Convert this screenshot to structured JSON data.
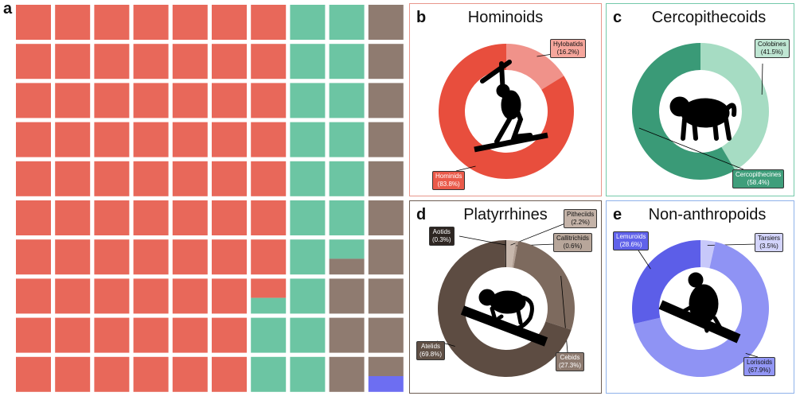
{
  "chart_data": [
    {
      "panel": "a",
      "type": "waffle",
      "rows": 10,
      "cols": 10,
      "colors": {
        "Hominoids": "#e8685a",
        "Cercopithecoids": "#6cc5a3",
        "Platyrrhines": "#8f7b70",
        "Non-anthropoids": "#6d6ef2"
      },
      "columns": [
        [
          "Hominoids",
          "Hominoids",
          "Hominoids",
          "Hominoids",
          "Hominoids",
          "Hominoids",
          "Hominoids",
          "Hominoids",
          "Hominoids",
          "Hominoids"
        ],
        [
          "Hominoids",
          "Hominoids",
          "Hominoids",
          "Hominoids",
          "Hominoids",
          "Hominoids",
          "Hominoids",
          "Hominoids",
          "Hominoids",
          "Hominoids"
        ],
        [
          "Hominoids",
          "Hominoids",
          "Hominoids",
          "Hominoids",
          "Hominoids",
          "Hominoids",
          "Hominoids",
          "Hominoids",
          "Hominoids",
          "Hominoids"
        ],
        [
          "Hominoids",
          "Hominoids",
          "Hominoids",
          "Hominoids",
          "Hominoids",
          "Hominoids",
          "Hominoids",
          "Hominoids",
          "Hominoids",
          "Hominoids"
        ],
        [
          "Hominoids",
          "Hominoids",
          "Hominoids",
          "Hominoids",
          "Hominoids",
          "Hominoids",
          "Hominoids",
          "Hominoids",
          "Hominoids",
          "Hominoids"
        ],
        [
          "Hominoids",
          "Hominoids",
          "Hominoids",
          "Hominoids",
          "Hominoids",
          "Hominoids",
          "Hominoids",
          "Hominoids",
          "Hominoids",
          "Hominoids"
        ],
        [
          "Hominoids",
          "Hominoids",
          "Hominoids",
          "Hominoids",
          "Hominoids",
          "Hominoids",
          "Hominoids",
          [
            "Hominoids",
            "Cercopithecoids"
          ],
          "Cercopithecoids",
          "Cercopithecoids"
        ],
        [
          "Cercopithecoids",
          "Cercopithecoids",
          "Cercopithecoids",
          "Cercopithecoids",
          "Cercopithecoids",
          "Cercopithecoids",
          "Cercopithecoids",
          "Cercopithecoids",
          "Cercopithecoids",
          "Cercopithecoids"
        ],
        [
          "Cercopithecoids",
          "Cercopithecoids",
          "Cercopithecoids",
          "Cercopithecoids",
          "Cercopithecoids",
          "Cercopithecoids",
          [
            "Cercopithecoids",
            "Platyrrhines"
          ],
          "Platyrrhines",
          "Platyrrhines",
          "Platyrrhines"
        ],
        [
          "Platyrrhines",
          "Platyrrhines",
          "Platyrrhines",
          "Platyrrhines",
          "Platyrrhines",
          "Platyrrhines",
          "Platyrrhines",
          "Platyrrhines",
          "Platyrrhines",
          [
            "Platyrrhines",
            "Non-anthropoids"
          ]
        ]
      ]
    },
    {
      "panel": "b",
      "type": "pie",
      "title": "Hominoids",
      "slices": [
        {
          "label": "Hylobatids",
          "value": 16.2,
          "display": "(16.2%)",
          "color": "#f0928a",
          "labelbg": "#f6a69c"
        },
        {
          "label": "Hominids",
          "value": 83.8,
          "display": "(83.8%)",
          "color": "#e84e3d",
          "labelbg": "#ea5a4a"
        }
      ],
      "border": "#e8968c"
    },
    {
      "panel": "c",
      "type": "pie",
      "title": "Cercopithecoids",
      "slices": [
        {
          "label": "Colobines",
          "value": 41.5,
          "display": "(41.5%)",
          "color": "#a6dcc3",
          "labelbg": "#bfe6d3"
        },
        {
          "label": "Cercopithecines",
          "value": 58.4,
          "display": "(58.4%)",
          "color": "#3a9a77",
          "labelbg": "#3f9e7b"
        }
      ],
      "border": "#74c9aa"
    },
    {
      "panel": "d",
      "type": "pie",
      "title": "Platyrrhines",
      "slices": [
        {
          "label": "Pitheciids",
          "value": 2.2,
          "display": "(2.2%)",
          "color": "#c7b7ac",
          "labelbg": "#c4b3a8"
        },
        {
          "label": "Callitrichids",
          "value": 0.6,
          "display": "(0.6%)",
          "color": "#b09d91",
          "labelbg": "#b7a69a"
        },
        {
          "label": "Cebids",
          "value": 27.3,
          "display": "(27.3%)",
          "color": "#7d6a5e",
          "labelbg": "#8d7a6f"
        },
        {
          "label": "Atelids",
          "value": 69.8,
          "display": "(69.8%)",
          "color": "#5d4c42",
          "labelbg": "#5f4f45"
        },
        {
          "label": "Aotids",
          "value": 0.3,
          "display": "(0.3%)",
          "color": "#2e2622",
          "labelbg": "#2e2622"
        }
      ],
      "border": "#6e5d52"
    },
    {
      "panel": "e",
      "type": "pie",
      "title": "Non-anthropoids",
      "slices": [
        {
          "label": "Tarsiers",
          "value": 3.5,
          "display": "(3.5%)",
          "color": "#c7c8fa",
          "labelbg": "#d3d4fb"
        },
        {
          "label": "Lorisoids",
          "value": 67.9,
          "display": "(67.9%)",
          "color": "#8f93f4",
          "labelbg": "#9296f5"
        },
        {
          "label": "Lemuroids",
          "value": 28.6,
          "display": "(28.6%)",
          "color": "#5c5ee8",
          "labelbg": "#6062ea"
        }
      ],
      "border": "#8fb2ea"
    }
  ],
  "panel_letters": {
    "a": "a",
    "b": "b",
    "c": "c",
    "d": "d",
    "e": "e"
  },
  "silhouette_icons": [
    "gibbon-silhouette-icon",
    "macaque-silhouette-icon",
    "spider-monkey-silhouette-icon",
    "lemur-silhouette-icon"
  ]
}
